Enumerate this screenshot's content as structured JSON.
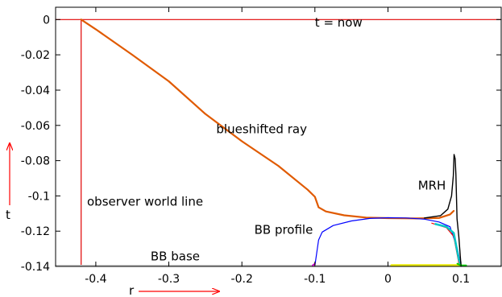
{
  "chart_data": {
    "type": "line",
    "xlabel": "r",
    "ylabel": "t",
    "xlim": [
      -0.455,
      0.155
    ],
    "ylim": [
      -0.14,
      0.007
    ],
    "grid": false,
    "x_ticks": [
      -0.4,
      -0.3,
      -0.2,
      -0.1,
      0,
      0.1
    ],
    "x_tick_labels": [
      "-0.4",
      "-0.3",
      "-0.2",
      "-0.1",
      "0",
      "0.1"
    ],
    "y_ticks": [
      0,
      -0.02,
      -0.04,
      -0.06,
      -0.08,
      -0.1,
      -0.12,
      -0.14
    ],
    "y_tick_labels": [
      "0",
      "-0.02",
      "-0.04",
      "-0.06",
      "-0.08",
      "-0.1",
      "-0.12",
      "-0.14"
    ],
    "annotations": [
      {
        "text": "t = now",
        "x": -0.1,
        "y": -0.004
      },
      {
        "text": "blueshifted ray",
        "x": -0.235,
        "y": -0.0645
      },
      {
        "text": "observer world line",
        "x": -0.412,
        "y": -0.1055
      },
      {
        "text": "MRH",
        "x": 0.041,
        "y": -0.0965
      },
      {
        "text": "BB profile",
        "x": -0.183,
        "y": -0.1215
      },
      {
        "text": "BB base",
        "x": -0.325,
        "y": -0.1365
      }
    ],
    "series": [
      {
        "color": "#e00000",
        "width": 1.2,
        "points": [
          [
            -0.455,
            0
          ],
          [
            0.155,
            0
          ]
        ]
      },
      {
        "color": "#e00000",
        "width": 1.2,
        "points": [
          [
            -0.42,
            0
          ],
          [
            -0.42,
            -0.14
          ]
        ]
      },
      {
        "color": "#e05a00",
        "width": 2.2,
        "points": [
          [
            -0.42,
            0
          ],
          [
            -0.4,
            -0.0055
          ],
          [
            -0.35,
            -0.02
          ],
          [
            -0.3,
            -0.035
          ],
          [
            -0.25,
            -0.0535
          ],
          [
            -0.2,
            -0.069
          ],
          [
            -0.15,
            -0.083
          ],
          [
            -0.11,
            -0.0965
          ],
          [
            -0.1,
            -0.1005
          ],
          [
            -0.095,
            -0.1065
          ],
          [
            -0.085,
            -0.1088
          ],
          [
            -0.06,
            -0.111
          ],
          [
            -0.03,
            -0.1123
          ],
          [
            0,
            -0.1126
          ],
          [
            0.04,
            -0.1128
          ],
          [
            0.07,
            -0.1125
          ],
          [
            0.085,
            -0.1105
          ],
          [
            0.09,
            -0.1085
          ]
        ]
      },
      {
        "color": "#0000ff",
        "width": 1.2,
        "points": [
          [
            -0.1,
            -0.1395
          ],
          [
            -0.095,
            -0.125
          ],
          [
            -0.09,
            -0.1205
          ],
          [
            -0.075,
            -0.1168
          ],
          [
            -0.05,
            -0.1142
          ],
          [
            -0.025,
            -0.1128
          ],
          [
            0,
            -0.1124
          ],
          [
            0.025,
            -0.1125
          ],
          [
            0.05,
            -0.1132
          ],
          [
            0.07,
            -0.1148
          ],
          [
            0.085,
            -0.1175
          ],
          [
            0.095,
            -0.13
          ],
          [
            0.1,
            -0.14
          ]
        ]
      },
      {
        "color": "#ff0000",
        "width": 1.2,
        "points": [
          [
            0.06,
            -0.1155
          ],
          [
            0.08,
            -0.118
          ],
          [
            0.09,
            -0.123
          ],
          [
            0.097,
            -0.138
          ]
        ]
      },
      {
        "color": "#00c8c8",
        "width": 2.5,
        "points": [
          [
            0.065,
            -0.116
          ],
          [
            0.08,
            -0.1175
          ],
          [
            0.09,
            -0.121
          ],
          [
            0.097,
            -0.136
          ],
          [
            0.1,
            -0.1395
          ]
        ]
      },
      {
        "color": "#000000",
        "width": 1.4,
        "points": [
          [
            0.05,
            -0.1125
          ],
          [
            0.072,
            -0.1112
          ],
          [
            0.082,
            -0.1075
          ],
          [
            0.087,
            -0.1
          ],
          [
            0.0895,
            -0.0885
          ],
          [
            0.0905,
            -0.0765
          ],
          [
            0.092,
            -0.079
          ],
          [
            0.093,
            -0.088
          ],
          [
            0.0945,
            -0.113
          ],
          [
            0.097,
            -0.123
          ],
          [
            0.1,
            -0.1395
          ],
          [
            0.155,
            -0.1395
          ]
        ]
      },
      {
        "color": "#c8c8c8",
        "width": 1.5,
        "points": [
          [
            -0.455,
            -0.1394
          ],
          [
            0.155,
            -0.1394
          ]
        ]
      },
      {
        "color": "#e8e800",
        "width": 3,
        "points": [
          [
            0.005,
            -0.1394
          ],
          [
            0.1,
            -0.1394
          ]
        ]
      },
      {
        "color": "#00cc00",
        "width": 2,
        "points": [
          [
            0.095,
            -0.1385
          ],
          [
            0.1,
            -0.1394
          ],
          [
            0.107,
            -0.1394
          ]
        ]
      },
      {
        "color": "#cc00cc",
        "width": 2,
        "points": [
          [
            -0.103,
            -0.1394
          ],
          [
            -0.1,
            -0.1385
          ]
        ]
      }
    ]
  }
}
